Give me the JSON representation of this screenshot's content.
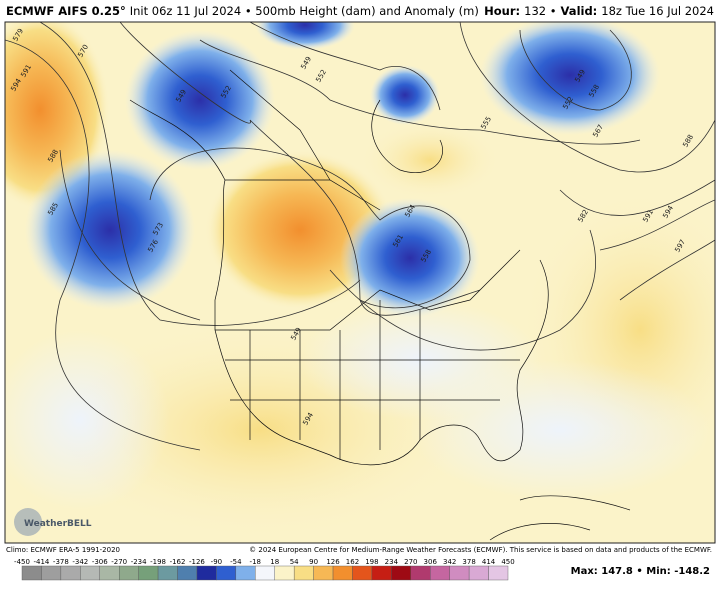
{
  "header": {
    "title_bold": "ECMWF AIFS 0.25°",
    "title_rest": "Init 06z 11 Jul 2024 • 500mb Height (dam) and Anomaly (m)",
    "hour_label": "Hour:",
    "hour_value": "132 •",
    "valid_label": "Valid:",
    "valid_value": "18z Tue 16 Jul 2024"
  },
  "map": {
    "contour_labels": [
      "579",
      "591",
      "594",
      "588",
      "585",
      "576",
      "573",
      "570",
      "549",
      "552",
      "549",
      "552",
      "561",
      "564",
      "558",
      "549",
      "552",
      "555",
      "558",
      "567",
      "588",
      "582",
      "591",
      "594",
      "597",
      "594",
      "549"
    ],
    "logo": "WeatherBELL"
  },
  "footer": {
    "climo": "Climo: ECMWF ERA-5 1991-2020",
    "copyright": "© 2024 European Centre for Medium-Range Weather Forecasts (ECMWF). This service is based on data and products of the ECMWF."
  },
  "colorbar": {
    "ticks": [
      -450,
      -414,
      -378,
      -342,
      -306,
      -270,
      -234,
      -198,
      -162,
      -126,
      -90,
      -54,
      -18,
      18,
      54,
      90,
      126,
      162,
      198,
      234,
      270,
      306,
      342,
      378,
      414,
      450
    ],
    "colors": [
      "#8c8c8c",
      "#9e9e9e",
      "#aaaaaa",
      "#b5b9b5",
      "#a9b7a5",
      "#8fa98c",
      "#76a07a",
      "#6c9aa0",
      "#4f7fae",
      "#1f2b9e",
      "#2f5fd0",
      "#7fb0ea",
      "#f4f6fb",
      "#fbf3c9",
      "#f8de85",
      "#f6b855",
      "#f28f2e",
      "#e4551c",
      "#c61e14",
      "#9e0a14",
      "#b03a6e",
      "#c566a0",
      "#d08cc0",
      "#d9a9d4",
      "#e4c6e4"
    ]
  },
  "extremes": {
    "text": "Max: 147.8 • Min: -148.2"
  }
}
